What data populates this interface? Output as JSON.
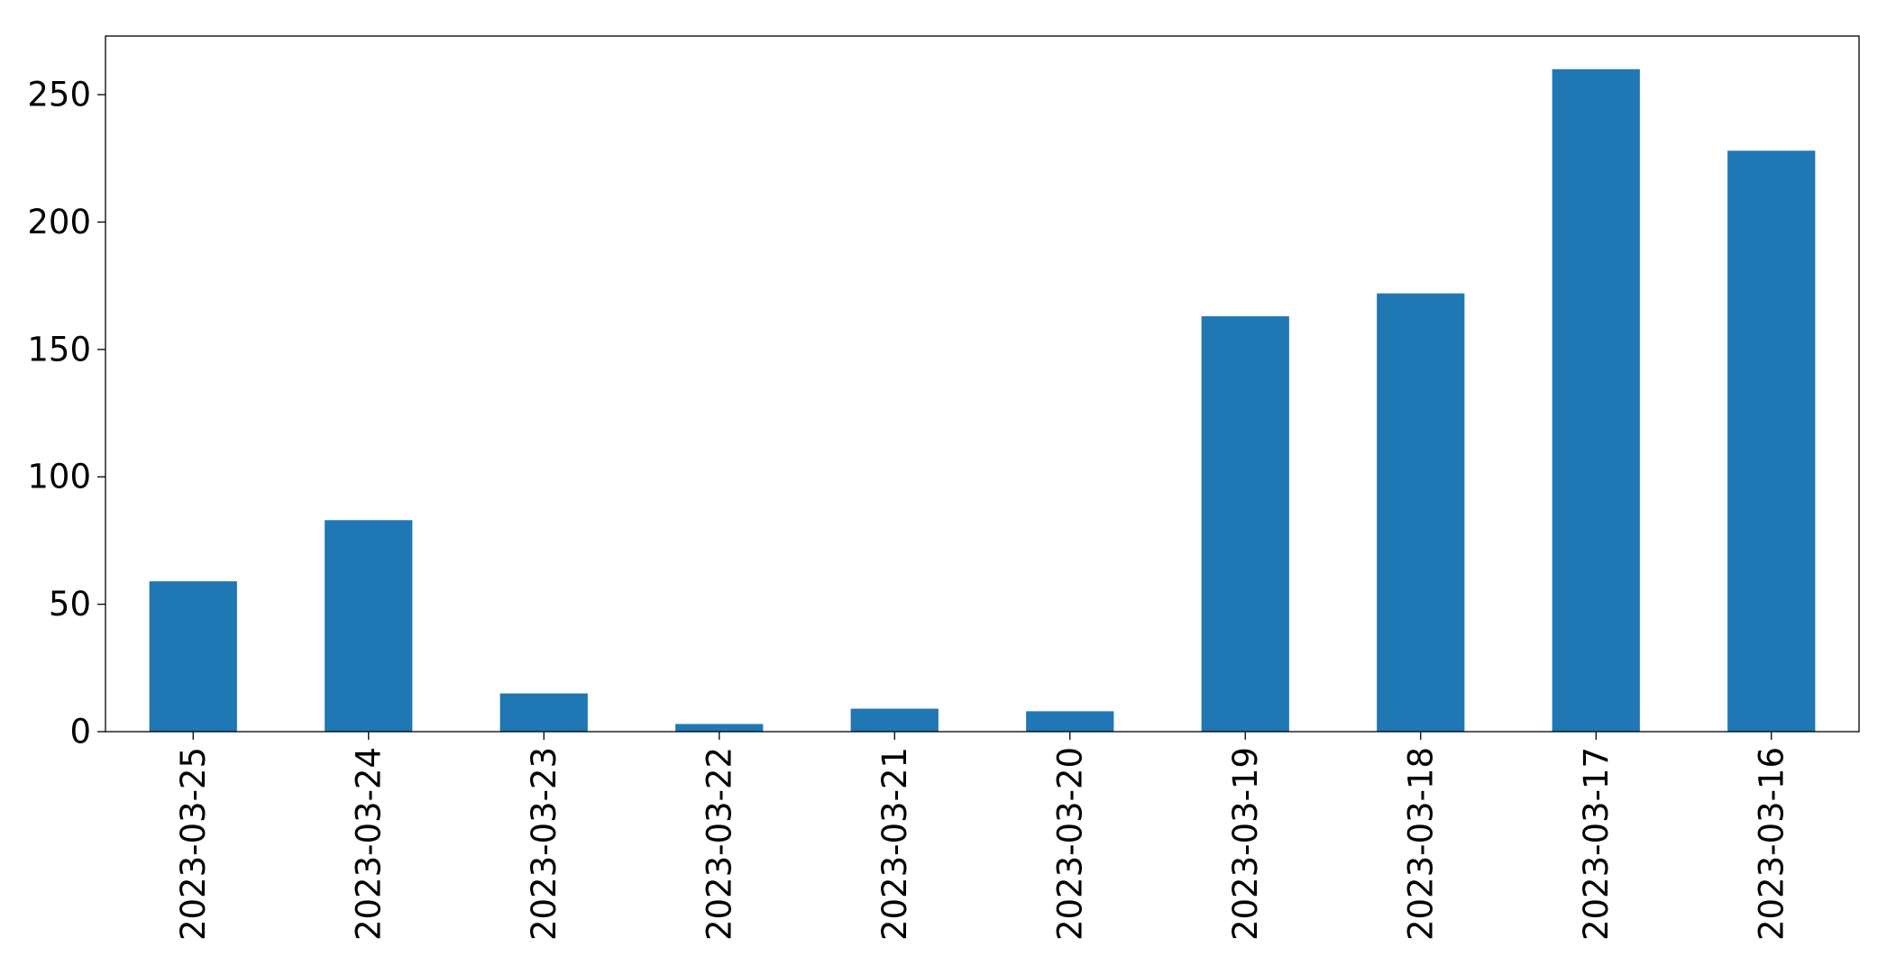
{
  "chart_data": {
    "type": "bar",
    "title": "",
    "xlabel": "",
    "ylabel": "",
    "categories": [
      "2023-03-25",
      "2023-03-24",
      "2023-03-23",
      "2023-03-22",
      "2023-03-21",
      "2023-03-20",
      "2023-03-19",
      "2023-03-18",
      "2023-03-17",
      "2023-03-16"
    ],
    "values": [
      59,
      83,
      15,
      3,
      9,
      8,
      163,
      172,
      260,
      228
    ],
    "ylim": [
      0,
      273
    ],
    "yticks": [
      0,
      50,
      100,
      150,
      200,
      250
    ],
    "bar_color": "#1f77b4",
    "grid": false,
    "legend": "none"
  }
}
